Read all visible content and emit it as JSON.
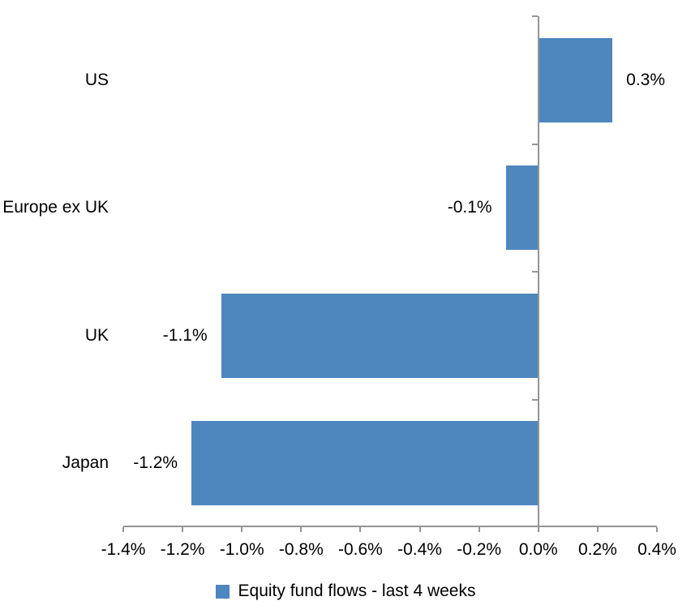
{
  "chart_data": {
    "type": "bar",
    "orientation": "horizontal",
    "title": "",
    "categories": [
      "US",
      "Europe ex UK",
      "UK",
      "Japan"
    ],
    "values": [
      0.3,
      -0.1,
      -1.1,
      -1.2
    ],
    "values_rendered": [
      0.25,
      -0.11,
      -1.07,
      -1.17
    ],
    "data_labels": [
      "0.3%",
      "-0.1%",
      "-1.1%",
      "-1.2%"
    ],
    "unit": "%",
    "xlabel": "",
    "ylabel": "",
    "xlim": [
      -1.4,
      0.4
    ],
    "x_ticks": [
      -1.4,
      -1.2,
      -1.0,
      -0.8,
      -0.6,
      -0.4,
      -0.2,
      0.0,
      0.2,
      0.4
    ],
    "x_tick_labels": [
      "-1.4%",
      "-1.2%",
      "-1.0%",
      "-0.8%",
      "-0.6%",
      "-0.4%",
      "-0.2%",
      "0.0%",
      "0.2%",
      "0.4%"
    ],
    "grid": false,
    "legend": {
      "position": "bottom-center",
      "label": "Equity fund flows - last 4 weeks"
    },
    "colors": {
      "bar": "#4E86BE",
      "axis": "#949494",
      "text": "#000000",
      "background": "#FFFFFF"
    }
  }
}
